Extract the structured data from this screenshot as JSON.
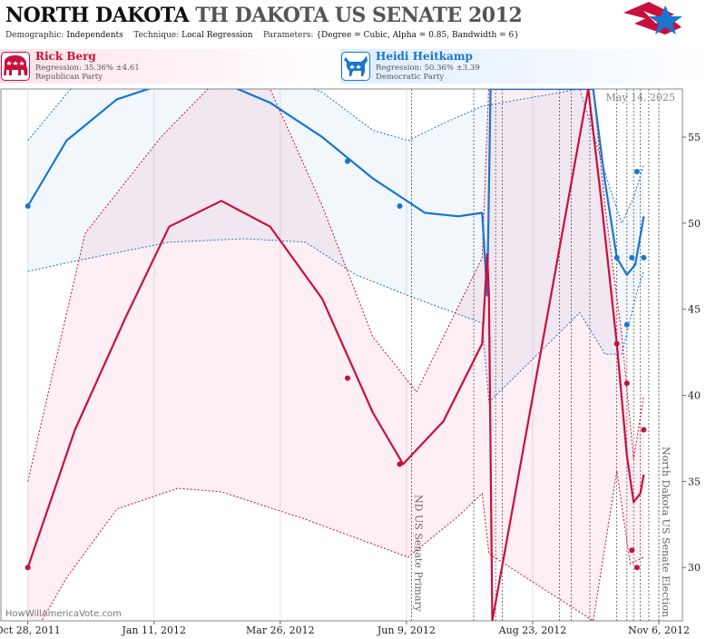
{
  "header": {
    "title_main": "NORTH DAKOTA",
    "title_sub": "TH DAKOTA US SENATE 2012",
    "demographic_label": "Demographic:",
    "demographic_value": "Independents",
    "technique_label": "Technique:",
    "technique_value": "Local Regression",
    "parameters_label": "Parameters:",
    "parameters_value": "{Degree = Cubic, Alpha = 0.85, Bandwidth = 6}"
  },
  "candidates": [
    {
      "name": "Rick Berg",
      "regression": "Regression: 35.36% ±4.61",
      "party": "Republican Party",
      "color": "#c8103c"
    },
    {
      "name": "Heidi Heitkamp",
      "regression": "Regression: 50.36% ±3.39",
      "party": "Democratic Party",
      "color": "#1a75cf"
    }
  ],
  "watermark": "HowWillAmericaVote.com",
  "date_stamp": "May 14, 2025",
  "chart_data": {
    "type": "line",
    "x_tick_labels": [
      "Oct 28, 2011",
      "Jan 11, 2012",
      "Mar 26, 2012",
      "Jun 9, 2012",
      "Aug 23, 2012",
      "Nov 6, 2012"
    ],
    "x_ticks": [
      "2011-10-28",
      "2012-01-11",
      "2012-03-26",
      "2012-06-09",
      "2012-08-23",
      "2012-11-06"
    ],
    "x_range": [
      "2011-10-12",
      "2012-11-20"
    ],
    "y_ticks": [
      30,
      35,
      40,
      45,
      50,
      55
    ],
    "ylim": [
      26.9,
      57.8
    ],
    "y_axis_side": "right",
    "grid": "vertical",
    "events": [
      {
        "date": "2012-06-12",
        "label": "ND US Senate Primary"
      },
      {
        "date": "2012-11-06",
        "label": "North Dakota US Senate Election"
      }
    ],
    "poll_dates": [
      "2012-07-19",
      "2012-08-01",
      "2012-08-05",
      "2012-09-08",
      "2012-09-15",
      "2012-09-26",
      "2012-10-12",
      "2012-10-18",
      "2012-10-22",
      "2012-10-26",
      "2012-10-31"
    ],
    "series": [
      {
        "name": "Heidi Heitkamp",
        "color": "#1a75cf",
        "points": [
          [
            "2011-10-28",
            51.0
          ],
          [
            "2012-05-05",
            53.6
          ],
          [
            "2012-06-05",
            51.0
          ],
          [
            "2012-10-12",
            48.0
          ],
          [
            "2012-10-18",
            44.1
          ],
          [
            "2012-10-21",
            48.0
          ],
          [
            "2012-10-24",
            53.0
          ],
          [
            "2012-10-28",
            48.0
          ]
        ],
        "fit": [
          [
            "2011-10-28",
            51.0
          ],
          [
            "2011-11-20",
            54.8
          ],
          [
            "2011-12-20",
            57.2
          ],
          [
            "2012-01-20",
            58.2
          ],
          [
            "2012-02-20",
            58.2
          ],
          [
            "2012-03-20",
            57.0
          ],
          [
            "2012-04-20",
            55.0
          ],
          [
            "2012-05-20",
            52.6
          ],
          [
            "2012-06-20",
            50.6
          ],
          [
            "2012-07-10",
            50.4
          ],
          [
            "2012-07-24",
            50.6
          ],
          [
            "2012-07-27",
            45.8
          ],
          [
            "2012-07-29",
            57.8
          ],
          [
            "2012-09-28",
            57.8
          ],
          [
            "2012-10-05",
            52.4
          ],
          [
            "2012-10-12",
            48.0
          ],
          [
            "2012-10-18",
            47.0
          ],
          [
            "2012-10-23",
            47.6
          ],
          [
            "2012-10-28",
            50.4
          ]
        ],
        "upper": [
          [
            "2011-10-28",
            54.8
          ],
          [
            "2011-12-01",
            58.8
          ],
          [
            "2012-01-15",
            59.8
          ],
          [
            "2012-02-20",
            59.8
          ],
          [
            "2012-03-20",
            58.8
          ],
          [
            "2012-04-20",
            57.6
          ],
          [
            "2012-05-20",
            55.4
          ],
          [
            "2012-06-10",
            54.8
          ],
          [
            "2012-07-01",
            55.8
          ],
          [
            "2012-07-24",
            56.8
          ],
          [
            "2012-09-20",
            57.8
          ],
          [
            "2012-10-08",
            52.0
          ],
          [
            "2012-10-15",
            50.0
          ],
          [
            "2012-10-22",
            51.5
          ],
          [
            "2012-10-28",
            53.4
          ]
        ],
        "lower": [
          [
            "2011-10-28",
            47.2
          ],
          [
            "2011-11-25",
            47.8
          ],
          [
            "2012-01-20",
            48.9
          ],
          [
            "2012-03-05",
            49.1
          ],
          [
            "2012-04-10",
            48.9
          ],
          [
            "2012-05-10",
            47.0
          ],
          [
            "2012-06-10",
            45.8
          ],
          [
            "2012-07-24",
            44.2
          ],
          [
            "2012-07-28",
            39.6
          ],
          [
            "2012-09-20",
            44.8
          ],
          [
            "2012-10-05",
            42.4
          ],
          [
            "2012-10-15",
            42.4
          ],
          [
            "2012-10-24",
            46.0
          ],
          [
            "2012-10-28",
            47.2
          ]
        ]
      },
      {
        "name": "Rick Berg",
        "color": "#c8103c",
        "points": [
          [
            "2011-10-28",
            30.0
          ],
          [
            "2012-05-05",
            41.0
          ],
          [
            "2012-06-05",
            36.0
          ],
          [
            "2012-10-12",
            43.0
          ],
          [
            "2012-10-18",
            40.7
          ],
          [
            "2012-10-21",
            31.0
          ],
          [
            "2012-10-24",
            30.0
          ],
          [
            "2012-10-28",
            38.0
          ]
        ],
        "fit": [
          [
            "2011-10-28",
            30.0
          ],
          [
            "2011-11-25",
            38.0
          ],
          [
            "2011-12-25",
            44.5
          ],
          [
            "2012-01-20",
            49.8
          ],
          [
            "2012-02-20",
            51.3
          ],
          [
            "2012-03-20",
            49.8
          ],
          [
            "2012-04-20",
            45.6
          ],
          [
            "2012-05-20",
            39.0
          ],
          [
            "2012-06-07",
            36.0
          ],
          [
            "2012-07-01",
            38.5
          ],
          [
            "2012-07-24",
            43.0
          ],
          [
            "2012-07-27",
            48.2
          ],
          [
            "2012-07-28",
            45.8
          ],
          [
            "2012-07-30",
            26.9
          ],
          [
            "2012-09-25",
            57.8
          ],
          [
            "2012-10-02",
            52.0
          ],
          [
            "2012-10-12",
            43.0
          ],
          [
            "2012-10-18",
            36.5
          ],
          [
            "2012-10-22",
            33.8
          ],
          [
            "2012-10-26",
            34.3
          ],
          [
            "2012-10-28",
            35.4
          ]
        ],
        "upper": [
          [
            "2011-10-28",
            35.0
          ],
          [
            "2011-12-01",
            49.4
          ],
          [
            "2012-01-15",
            55.0
          ],
          [
            "2012-02-20",
            58.6
          ],
          [
            "2012-03-20",
            57.8
          ],
          [
            "2012-04-20",
            51.0
          ],
          [
            "2012-05-20",
            43.4
          ],
          [
            "2012-06-15",
            40.2
          ],
          [
            "2012-07-10",
            45.2
          ],
          [
            "2012-07-24",
            48.0
          ],
          [
            "2012-07-28",
            58.3
          ],
          [
            "2012-09-28",
            57.8
          ],
          [
            "2012-10-05",
            51.0
          ],
          [
            "2012-10-15",
            43.5
          ],
          [
            "2012-10-22",
            36.3
          ],
          [
            "2012-10-28",
            40.0
          ]
        ],
        "lower": [
          [
            "2011-10-28",
            25.5
          ],
          [
            "2011-11-20",
            29.4
          ],
          [
            "2011-12-20",
            33.4
          ],
          [
            "2012-01-25",
            34.6
          ],
          [
            "2012-02-20",
            34.4
          ],
          [
            "2012-04-10",
            32.8
          ],
          [
            "2012-06-10",
            30.6
          ],
          [
            "2012-07-10",
            33.0
          ],
          [
            "2012-07-24",
            34.3
          ],
          [
            "2012-07-28",
            30.8
          ],
          [
            "2012-09-28",
            26.9
          ],
          [
            "2012-10-12",
            35.6
          ],
          [
            "2012-10-20",
            30.2
          ],
          [
            "2012-10-28",
            30.6
          ]
        ]
      }
    ]
  }
}
